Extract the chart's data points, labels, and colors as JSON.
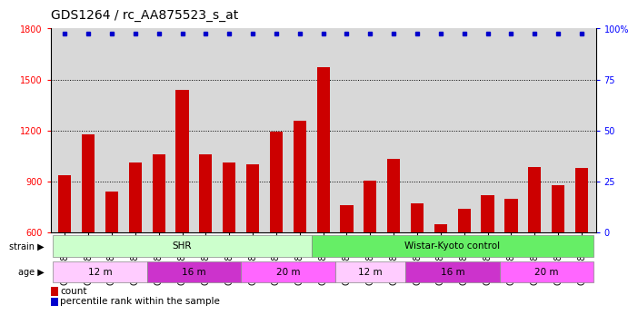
{
  "title": "GDS1264 / rc_AA875523_s_at",
  "samples": [
    "GSM38239",
    "GSM38240",
    "GSM38241",
    "GSM38242",
    "GSM38243",
    "GSM38244",
    "GSM38245",
    "GSM38246",
    "GSM38247",
    "GSM38248",
    "GSM38249",
    "GSM38250",
    "GSM38251",
    "GSM38252",
    "GSM38253",
    "GSM38254",
    "GSM38255",
    "GSM38256",
    "GSM38257",
    "GSM38258",
    "GSM38259",
    "GSM38260",
    "GSM38261"
  ],
  "counts": [
    940,
    1175,
    840,
    1010,
    1060,
    1440,
    1060,
    1010,
    1000,
    1195,
    1260,
    1570,
    760,
    905,
    1035,
    770,
    650,
    740,
    820,
    800,
    985,
    880,
    980
  ],
  "bar_color": "#cc0000",
  "dot_color": "#0000cc",
  "ylim_left": [
    600,
    1800
  ],
  "yticks_left": [
    600,
    900,
    1200,
    1500,
    1800
  ],
  "yticks_right": [
    0,
    25,
    50,
    75,
    100
  ],
  "strain_groups": [
    {
      "label": "SHR",
      "start": 0,
      "end": 11,
      "color": "#ccffcc"
    },
    {
      "label": "Wistar-Kyoto control",
      "start": 11,
      "end": 23,
      "color": "#66ee66"
    }
  ],
  "age_groups": [
    {
      "label": "12 m",
      "start": 0,
      "end": 4,
      "color": "#ffccff"
    },
    {
      "label": "16 m",
      "start": 4,
      "end": 8,
      "color": "#dd44dd"
    },
    {
      "label": "20 m",
      "start": 8,
      "end": 12,
      "color": "#ee66ee"
    },
    {
      "label": "12 m",
      "start": 12,
      "end": 15,
      "color": "#ffccff"
    },
    {
      "label": "16 m",
      "start": 15,
      "end": 19,
      "color": "#dd44dd"
    },
    {
      "label": "20 m",
      "start": 19,
      "end": 23,
      "color": "#ee66ee"
    }
  ],
  "background_color": "#d8d8d8",
  "title_fontsize": 10,
  "tick_fontsize": 7,
  "bar_width": 0.55,
  "fig_width": 7.14,
  "fig_height": 3.75
}
